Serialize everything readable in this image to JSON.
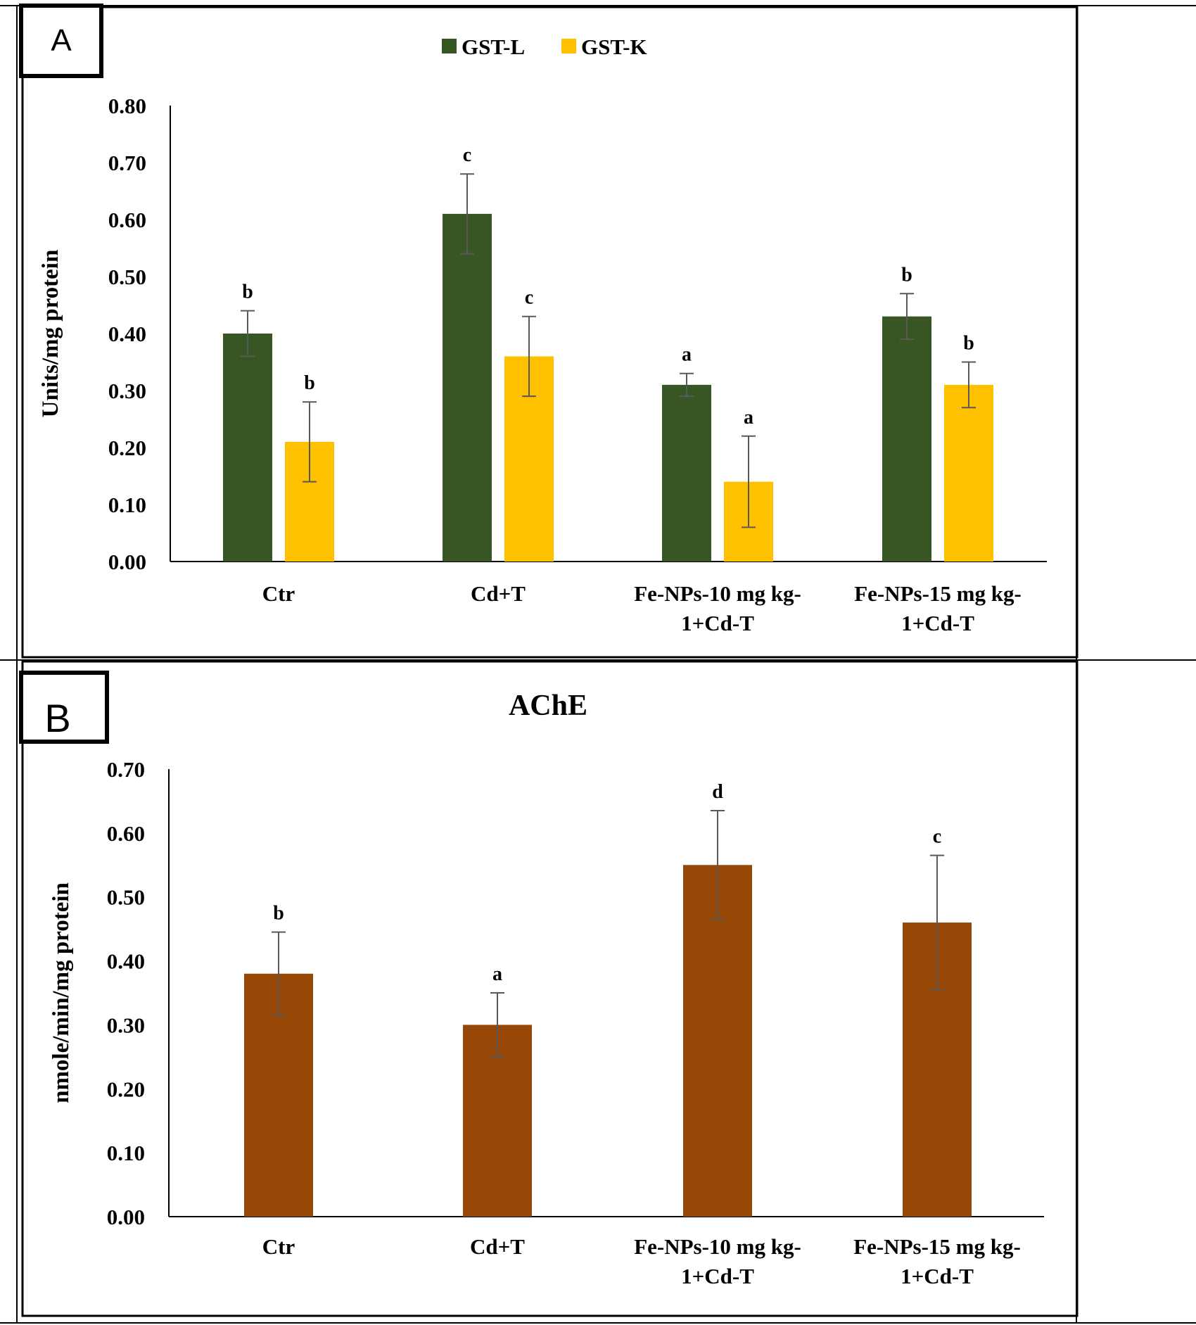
{
  "chart_data": [
    {
      "type": "bar",
      "panel_label": "A",
      "title": "",
      "ylabel": "Units/mg protein",
      "xlabel": "",
      "ylim": [
        0,
        0.8
      ],
      "yticks": [
        "0.00",
        "0.10",
        "0.20",
        "0.30",
        "0.40",
        "0.50",
        "0.60",
        "0.70",
        "0.80"
      ],
      "categories": [
        [
          "Ctr"
        ],
        [
          "Cd+T"
        ],
        [
          "Fe-NPs-10 mg kg-",
          "1+Cd-T"
        ],
        [
          "Fe-NPs-15 mg kg-",
          "1+Cd-T"
        ]
      ],
      "legend_position": "top",
      "series": [
        {
          "name": "GST-L",
          "color": "#375623",
          "values": [
            0.4,
            0.61,
            0.31,
            0.43
          ],
          "errors": [
            0.04,
            0.07,
            0.02,
            0.04
          ],
          "letters": [
            "b",
            "c",
            "a",
            "b"
          ]
        },
        {
          "name": "GST-K",
          "color": "#FFC000",
          "values": [
            0.21,
            0.36,
            0.14,
            0.31
          ],
          "errors": [
            0.07,
            0.07,
            0.08,
            0.04
          ],
          "letters": [
            "b",
            "c",
            "a",
            "b"
          ]
        }
      ]
    },
    {
      "type": "bar",
      "panel_label": "B",
      "title": "AChE",
      "ylabel": "nmole/min/mg protein",
      "xlabel": "",
      "ylim": [
        0,
        0.7
      ],
      "yticks": [
        "0.00",
        "0.10",
        "0.20",
        "0.30",
        "0.40",
        "0.50",
        "0.60",
        "0.70"
      ],
      "categories": [
        [
          "Ctr"
        ],
        [
          "Cd+T"
        ],
        [
          "Fe-NPs-10 mg kg-",
          "1+Cd-T"
        ],
        [
          "Fe-NPs-15 mg kg-",
          "1+Cd-T"
        ]
      ],
      "series": [
        {
          "name": "AChE",
          "color": "#974706",
          "values": [
            0.38,
            0.3,
            0.55,
            0.46
          ],
          "errors": [
            0.065,
            0.05,
            0.085,
            0.105
          ],
          "letters": [
            "b",
            "a",
            "d",
            "c"
          ]
        }
      ]
    }
  ]
}
